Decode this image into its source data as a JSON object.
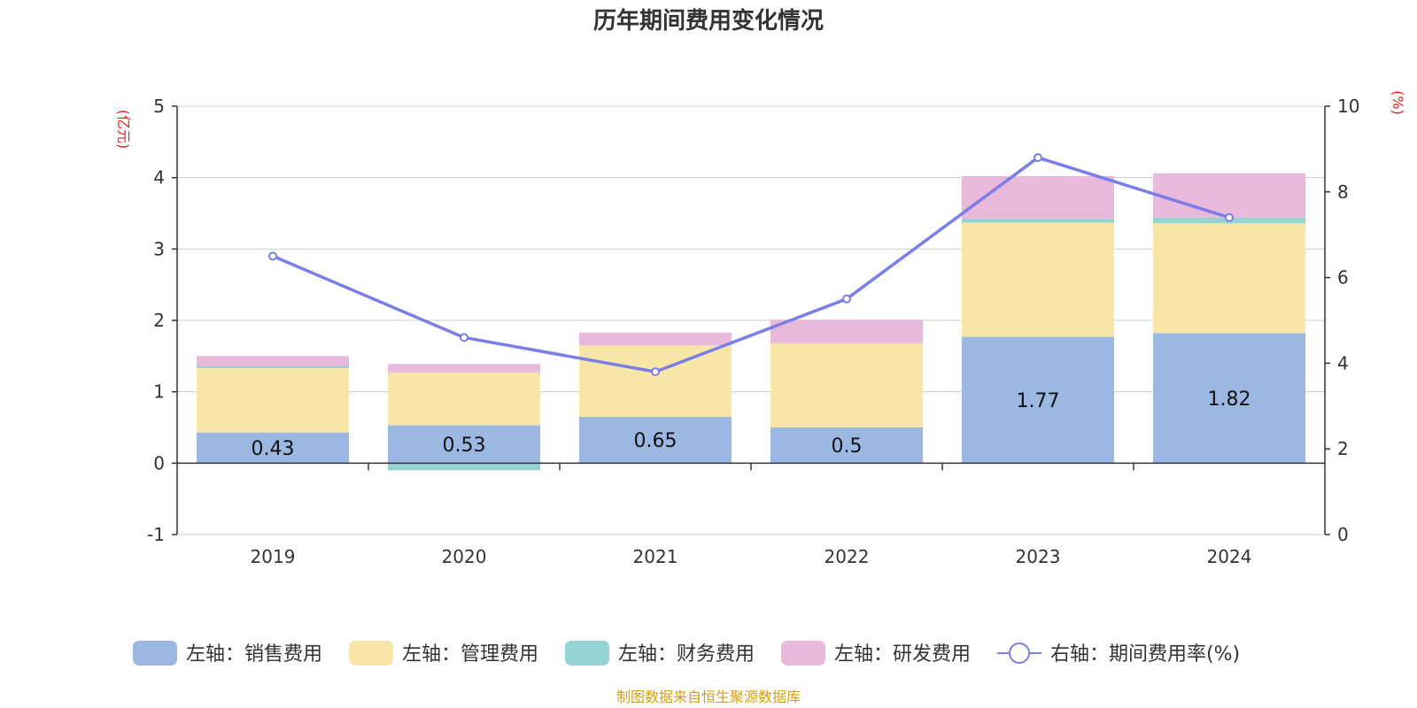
{
  "chart_data": {
    "type": "bar",
    "title": "历年期间费用变化情况",
    "categories": [
      "2019",
      "2020",
      "2021",
      "2022",
      "2023",
      "2024"
    ],
    "left_axis": {
      "unit": "(亿元)",
      "range": [
        -1,
        5
      ],
      "ticks": [
        "5",
        "4",
        "3",
        "2",
        "1",
        "0",
        "-1"
      ],
      "tick_values": [
        5,
        4,
        3,
        2,
        1,
        0,
        -1
      ]
    },
    "right_axis": {
      "unit": "(%)",
      "range": [
        0,
        10
      ],
      "ticks": [
        "10",
        "8",
        "6",
        "4",
        "2",
        "0"
      ],
      "tick_values": [
        10,
        8,
        6,
        4,
        2,
        0
      ]
    },
    "stacked_series": [
      {
        "name": "左轴：销售费用",
        "color": "#9bb8e3",
        "values": [
          0.43,
          0.53,
          0.65,
          0.5,
          1.77,
          1.82
        ],
        "labels": [
          "0.43",
          "0.53",
          "0.65",
          "0.5",
          "1.77",
          "1.82"
        ]
      },
      {
        "name": "左轴：管理费用",
        "color": "#f7e6a6",
        "values": [
          0.9,
          0.74,
          1.0,
          1.18,
          1.6,
          1.54
        ]
      },
      {
        "name": "左轴：财务费用",
        "color": "#96d3d3",
        "values": [
          0.03,
          -0.1,
          0.0,
          0.0,
          0.05,
          0.08
        ]
      },
      {
        "name": "左轴：研发费用",
        "color": "#e8b9da",
        "values": [
          0.14,
          0.12,
          0.18,
          0.33,
          0.6,
          0.62
        ]
      }
    ],
    "line_series": {
      "name": "右轴：期间费用率(%)",
      "color": "#7b7de8",
      "values": [
        6.5,
        4.6,
        3.8,
        5.5,
        8.8,
        7.4
      ]
    },
    "grid": true,
    "legend_position": "bottom"
  },
  "source": "制图数据来自恒生聚源数据库"
}
